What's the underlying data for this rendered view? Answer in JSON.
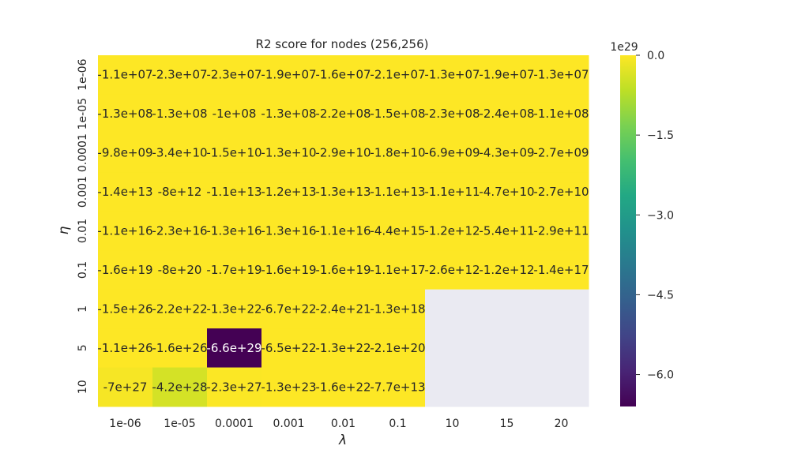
{
  "chart_data": {
    "type": "heatmap",
    "title": "R2 score for nodes (256,256)",
    "xlabel": "λ",
    "ylabel": "η",
    "x_categories": [
      "1e-06",
      "1e-05",
      "0.0001",
      "0.001",
      "0.01",
      "0.1",
      "10",
      "15",
      "20"
    ],
    "y_categories": [
      "1e-06",
      "1e-05",
      "0.0001",
      "0.001",
      "0.01",
      "0.1",
      "1",
      "5",
      "10"
    ],
    "values": [
      [
        -11000000.0,
        -23000000.0,
        -23000000.0,
        -19000000.0,
        -16000000.0,
        -21000000.0,
        -13000000.0,
        -19000000.0,
        -13000000.0
      ],
      [
        -130000000.0,
        -130000000.0,
        -100000000.0,
        -130000000.0,
        -220000000.0,
        -150000000.0,
        -230000000.0,
        -240000000.0,
        -110000000.0
      ],
      [
        -9800000000.0,
        -34000000000.0,
        -15000000000.0,
        -13000000000.0,
        -29000000000.0,
        -18000000000.0,
        -6900000000.0,
        -4300000000.0,
        -2700000000.0
      ],
      [
        -14000000000000.0,
        -8000000000000.0,
        -11000000000000.0,
        -12000000000000.0,
        -13000000000000.0,
        -11000000000000.0,
        -110000000000.0,
        -47000000000.0,
        -27000000000.0
      ],
      [
        -1.1e+16,
        -2.3e+16,
        -1.3e+16,
        -1.3e+16,
        -1.1e+16,
        -4400000000000000.0,
        -1200000000000.0,
        -540000000000.0,
        -290000000000.0
      ],
      [
        -1.6e+19,
        -8e+20,
        -1.7e+19,
        -1.6e+19,
        -1.6e+19,
        -1.1e+17,
        -2600000000000.0,
        -1200000000000.0,
        -1.4e+17
      ],
      [
        -1.5e+26,
        -2.2e+22,
        -1.3e+22,
        -6.7e+22,
        -2.4e+21,
        -1.3e+18,
        null,
        null,
        null
      ],
      [
        -1.1e+26,
        -1.6e+26,
        -6.6e+29,
        -6.5e+22,
        -1.3e+22,
        -2.1e+20,
        null,
        null,
        null
      ],
      [
        -7e+27,
        -4.2e+28,
        -2.3e+27,
        -1.3e+23,
        -1.6e+22,
        -77000000000000.0,
        null,
        null,
        null
      ]
    ],
    "annotations": [
      [
        "-1.1e+07",
        "-2.3e+07",
        "-2.3e+07",
        "-1.9e+07",
        "-1.6e+07",
        "-2.1e+07",
        "-1.3e+07",
        "-1.9e+07",
        "-1.3e+07"
      ],
      [
        "-1.3e+08",
        "-1.3e+08",
        "-1e+08",
        "-1.3e+08",
        "-2.2e+08",
        "-1.5e+08",
        "-2.3e+08",
        "-2.4e+08",
        "-1.1e+08"
      ],
      [
        "-9.8e+09",
        "-3.4e+10",
        "-1.5e+10",
        "-1.3e+10",
        "-2.9e+10",
        "-1.8e+10",
        "-6.9e+09",
        "-4.3e+09",
        "-2.7e+09"
      ],
      [
        "-1.4e+13",
        "-8e+12",
        "-1.1e+13",
        "-1.2e+13",
        "-1.3e+13",
        "-1.1e+13",
        "-1.1e+11",
        "-4.7e+10",
        "-2.7e+10"
      ],
      [
        "-1.1e+16",
        "-2.3e+16",
        "-1.3e+16",
        "-1.3e+16",
        "-1.1e+16",
        "-4.4e+15",
        "-1.2e+12",
        "-5.4e+11",
        "-2.9e+11"
      ],
      [
        "-1.6e+19",
        "-8e+20",
        "-1.7e+19",
        "-1.6e+19",
        "-1.6e+19",
        "-1.1e+17",
        "-2.6e+12",
        "-1.2e+12",
        "-1.4e+17"
      ],
      [
        "-1.5e+26",
        "-2.2e+22",
        "-1.3e+22",
        "-6.7e+22",
        "-2.4e+21",
        "-1.3e+18",
        "",
        "",
        ""
      ],
      [
        "-1.1e+26",
        "-1.6e+26",
        "-6.6e+29",
        "-6.5e+22",
        "-1.3e+22",
        "-2.1e+20",
        "",
        "",
        ""
      ],
      [
        "-7e+27",
        "-4.2e+28",
        "-2.3e+27",
        "-1.3e+23",
        "-1.6e+22",
        "-7.7e+13",
        "",
        "",
        ""
      ]
    ],
    "colorbar": {
      "multiplier_label": "1e29",
      "vmin": -6.6,
      "vmax": 0.0,
      "ticks": [
        0.0,
        -1.5,
        -3.0,
        -4.5,
        -6.0
      ],
      "tick_labels": [
        "0.0",
        "−1.5",
        "−3.0",
        "−4.5",
        "−6.0"
      ]
    },
    "colormap": "viridis",
    "missing_color": "#eaeaf2",
    "grid": false
  }
}
